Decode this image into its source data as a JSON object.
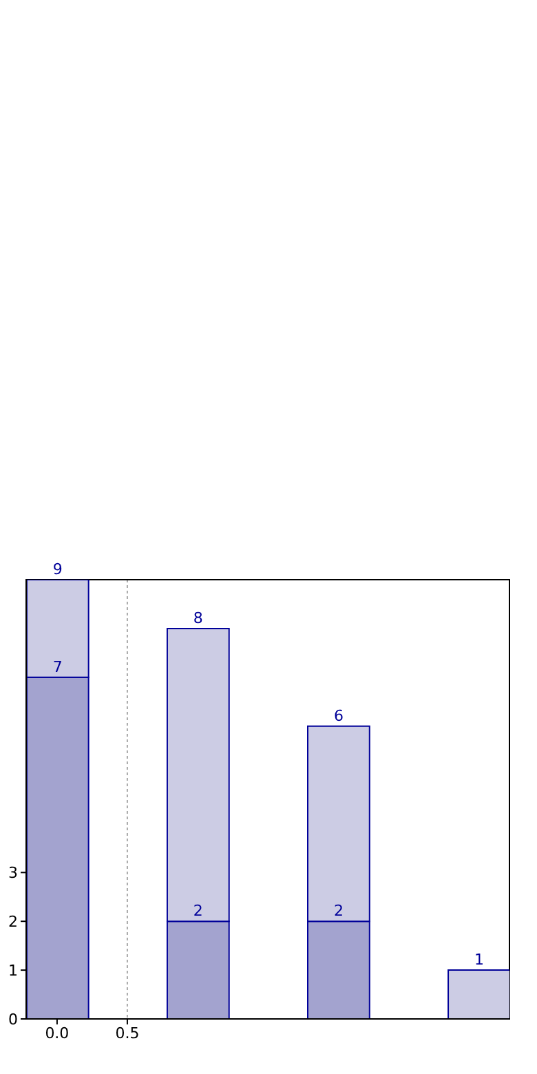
{
  "chart_data": {
    "type": "bar",
    "stacked": true,
    "x": [
      0,
      1,
      2,
      3
    ],
    "series": [
      {
        "color": "#a3a3cf",
        "values": [
          7,
          2,
          2,
          null
        ],
        "value_labels": [
          "7",
          "2",
          "2",
          null
        ]
      },
      {
        "color": "#ccccE4",
        "values": [
          2,
          6,
          4,
          1
        ]
      }
    ],
    "totals": [
      "9",
      "8",
      "6",
      "1"
    ],
    "xlim": [
      -0.22,
      3.22
    ],
    "xticks": [
      {
        "value": 0,
        "label": "0.0"
      },
      0.5
    ],
    "ylim": [
      0,
      9
    ],
    "yticks": [
      0,
      1,
      2,
      3
    ],
    "grid": "x"
  }
}
